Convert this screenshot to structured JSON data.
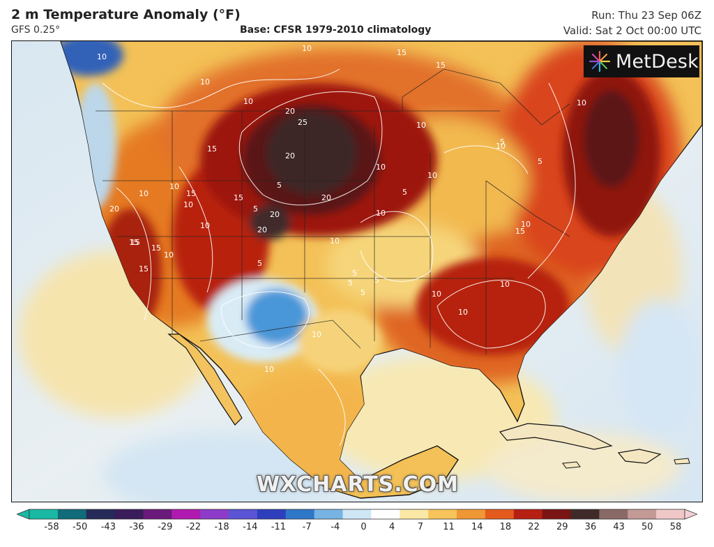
{
  "header": {
    "title": "2 m Temperature Anomaly (°F)",
    "model": "GFS 0.25°",
    "base": "Base: CFSR 1979-2010 climatology",
    "run": "Run: Thu 23 Sep 06Z",
    "valid": "Valid: Sat 2 Oct 00:00 UTC"
  },
  "logo": {
    "text": "MetDesk",
    "icon": "metdesk-burst-icon"
  },
  "watermark": "WXCHARTS.COM",
  "map": {
    "contour_labels": [
      "10",
      "15",
      "15",
      "10",
      "10",
      "10",
      "20",
      "25",
      "20",
      "20",
      "15",
      "15",
      "10",
      "15",
      "15",
      "20",
      "10",
      "10",
      "10",
      "5",
      "5",
      "20",
      "20",
      "15",
      "15",
      "10",
      "10",
      "10",
      "5",
      "10",
      "15",
      "10",
      "10",
      "5",
      "5",
      "10",
      "5",
      "10",
      "15",
      "10",
      "10",
      "10",
      "5",
      "10",
      "5",
      "5",
      "10",
      "5",
      "10"
    ],
    "colors": {
      "ocean_cool": "#dde9f1",
      "ocean_warm": "#f7e7b6",
      "land_mild": "#f6c760",
      "land_warm": "#ee8a2a",
      "land_hot": "#c72b0f",
      "land_very_hot": "#7a0d0d",
      "land_extreme": "#3d2424",
      "cold_anomaly": "#3f8fd6",
      "cool_anomaly": "#a9d1ee"
    }
  },
  "legend": {
    "ticks": [
      "-58",
      "-50",
      "-43",
      "-36",
      "-29",
      "-22",
      "-18",
      "-14",
      "-11",
      "-7",
      "-4",
      "0",
      "4",
      "7",
      "11",
      "14",
      "18",
      "22",
      "29",
      "36",
      "43",
      "50",
      "58"
    ],
    "colors": [
      "#19b9a3",
      "#0f6c78",
      "#262a58",
      "#3a1c5a",
      "#6a1a7a",
      "#b11ab0",
      "#8c3cc8",
      "#5b54d4",
      "#2e3fbd",
      "#2f78c8",
      "#77b3e3",
      "#cfe6f5",
      "#ffffff",
      "#fbe7a6",
      "#f6c45a",
      "#ef9734",
      "#e45a1d",
      "#b81f13",
      "#7a1414",
      "#3f2a2a",
      "#8a6a66",
      "#c49a96",
      "#f0c8c8"
    ]
  }
}
